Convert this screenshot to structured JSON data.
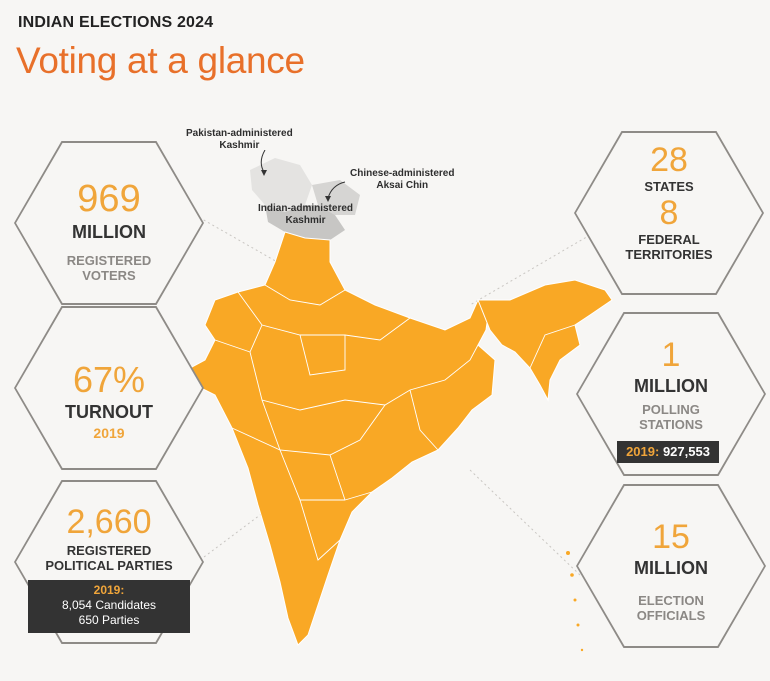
{
  "header": {
    "kicker": "INDIAN ELECTIONS 2024",
    "title": "Voting at a glance"
  },
  "map_labels": {
    "pakistan": "Pakistan-administered\nKashmir",
    "china": "Chinese-administered\nAksai Chin",
    "india": "Indian-administered\nKashmir"
  },
  "stats": {
    "voters": {
      "number": "969",
      "unit": "MILLION",
      "label_line1": "REGISTERED",
      "label_line2": "VOTERS"
    },
    "turnout": {
      "number": "67%",
      "unit": "TURNOUT",
      "year": "2019"
    },
    "parties": {
      "number": "2,660",
      "label_line1": "REGISTERED",
      "label_line2": "POLITICAL PARTIES",
      "band_year": "2019:",
      "band_line1": "8,054 Candidates",
      "band_line2": "650 Parties"
    },
    "states": {
      "number": "28",
      "unit": "STATES",
      "number2": "8",
      "unit2_line1": "FEDERAL",
      "unit2_line2": "TERRITORIES"
    },
    "polling": {
      "number": "1",
      "unit": "MILLION",
      "label_line1": "POLLING",
      "label_line2": "STATIONS",
      "band_year": "2019:",
      "band_value": "927,553"
    },
    "officials": {
      "number": "15",
      "unit": "MILLION",
      "label_line1": "ELECTION",
      "label_line2": "OFFICIALS"
    }
  },
  "colors": {
    "accent_title": "#e8702a",
    "map_fill": "#f9a825",
    "number": "#f0a53a",
    "band": "#333333"
  }
}
